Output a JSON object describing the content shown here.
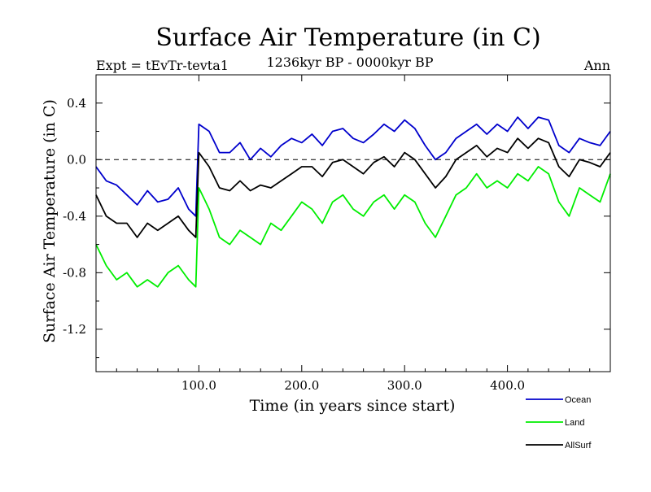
{
  "chart_data": {
    "type": "line",
    "title": "Surface Air Temperature (in C)",
    "subtitle": "1236kyr BP - 0000kyr BP",
    "experiment_label": "Expt = tEvTr-tevta1",
    "season_label": "Ann",
    "xlabel": "Time (in years since start)",
    "ylabel": "Surface Air Temperature (in C)",
    "xlim": [
      0,
      500
    ],
    "ylim": [
      -1.5,
      0.6
    ],
    "x_ticks": [
      100,
      200,
      300,
      400
    ],
    "x_tick_labels": [
      "100.0",
      "200.0",
      "300.0",
      "400.0"
    ],
    "y_ticks": [
      0.4,
      0.0,
      -0.4,
      -0.8,
      -1.2
    ],
    "y_tick_labels": [
      "0.4",
      "0.0",
      "-0.4",
      "-0.8",
      "-1.2"
    ],
    "reference_line": 0.0,
    "legend_position": "bottom-right",
    "series": [
      {
        "name": "Ocean",
        "color": "#0000cc",
        "x": [
          0,
          10,
          20,
          30,
          40,
          50,
          60,
          70,
          80,
          90,
          97,
          100,
          110,
          120,
          130,
          140,
          150,
          160,
          170,
          180,
          190,
          200,
          210,
          220,
          230,
          240,
          250,
          260,
          270,
          280,
          290,
          300,
          310,
          320,
          330,
          340,
          350,
          360,
          370,
          380,
          390,
          400,
          410,
          420,
          430,
          440,
          450,
          460,
          470,
          480,
          490,
          500
        ],
        "values": [
          -0.05,
          -0.15,
          -0.18,
          -0.25,
          -0.32,
          -0.22,
          -0.3,
          -0.28,
          -0.2,
          -0.35,
          -0.4,
          0.25,
          0.2,
          0.05,
          0.05,
          0.12,
          0.0,
          0.08,
          0.02,
          0.1,
          0.15,
          0.12,
          0.18,
          0.1,
          0.2,
          0.22,
          0.15,
          0.12,
          0.18,
          0.25,
          0.2,
          0.28,
          0.22,
          0.1,
          0.0,
          0.05,
          0.15,
          0.2,
          0.25,
          0.18,
          0.25,
          0.2,
          0.3,
          0.22,
          0.3,
          0.28,
          0.1,
          0.05,
          0.15,
          0.12,
          0.1,
          0.2
        ]
      },
      {
        "name": "Land",
        "color": "#00ee00",
        "x": [
          0,
          10,
          20,
          30,
          40,
          50,
          60,
          70,
          80,
          90,
          97,
          100,
          110,
          120,
          130,
          140,
          150,
          160,
          170,
          180,
          190,
          200,
          210,
          220,
          230,
          240,
          250,
          260,
          270,
          280,
          290,
          300,
          310,
          320,
          330,
          340,
          350,
          360,
          370,
          380,
          390,
          400,
          410,
          420,
          430,
          440,
          450,
          460,
          470,
          480,
          490,
          500
        ],
        "values": [
          -0.6,
          -0.75,
          -0.85,
          -0.8,
          -0.9,
          -0.85,
          -0.9,
          -0.8,
          -0.75,
          -0.85,
          -0.9,
          -0.2,
          -0.35,
          -0.55,
          -0.6,
          -0.5,
          -0.55,
          -0.6,
          -0.45,
          -0.5,
          -0.4,
          -0.3,
          -0.35,
          -0.45,
          -0.3,
          -0.25,
          -0.35,
          -0.4,
          -0.3,
          -0.25,
          -0.35,
          -0.25,
          -0.3,
          -0.45,
          -0.55,
          -0.4,
          -0.25,
          -0.2,
          -0.1,
          -0.2,
          -0.15,
          -0.2,
          -0.1,
          -0.15,
          -0.05,
          -0.1,
          -0.3,
          -0.4,
          -0.2,
          -0.25,
          -0.3,
          -0.1
        ]
      },
      {
        "name": "AllSurf",
        "color": "#000000",
        "x": [
          0,
          10,
          20,
          30,
          40,
          50,
          60,
          70,
          80,
          90,
          97,
          100,
          110,
          120,
          130,
          140,
          150,
          160,
          170,
          180,
          190,
          200,
          210,
          220,
          230,
          240,
          250,
          260,
          270,
          280,
          290,
          300,
          310,
          320,
          330,
          340,
          350,
          360,
          370,
          380,
          390,
          400,
          410,
          420,
          430,
          440,
          450,
          460,
          470,
          480,
          490,
          500
        ],
        "values": [
          -0.25,
          -0.4,
          -0.45,
          -0.45,
          -0.55,
          -0.45,
          -0.5,
          -0.45,
          -0.4,
          -0.5,
          -0.55,
          0.05,
          -0.05,
          -0.2,
          -0.22,
          -0.15,
          -0.22,
          -0.18,
          -0.2,
          -0.15,
          -0.1,
          -0.05,
          -0.05,
          -0.12,
          -0.02,
          0.0,
          -0.05,
          -0.1,
          -0.02,
          0.02,
          -0.05,
          0.05,
          0.0,
          -0.1,
          -0.2,
          -0.12,
          0.0,
          0.05,
          0.1,
          0.02,
          0.08,
          0.05,
          0.15,
          0.08,
          0.15,
          0.12,
          -0.05,
          -0.12,
          0.0,
          -0.02,
          -0.05,
          0.05
        ]
      }
    ]
  }
}
